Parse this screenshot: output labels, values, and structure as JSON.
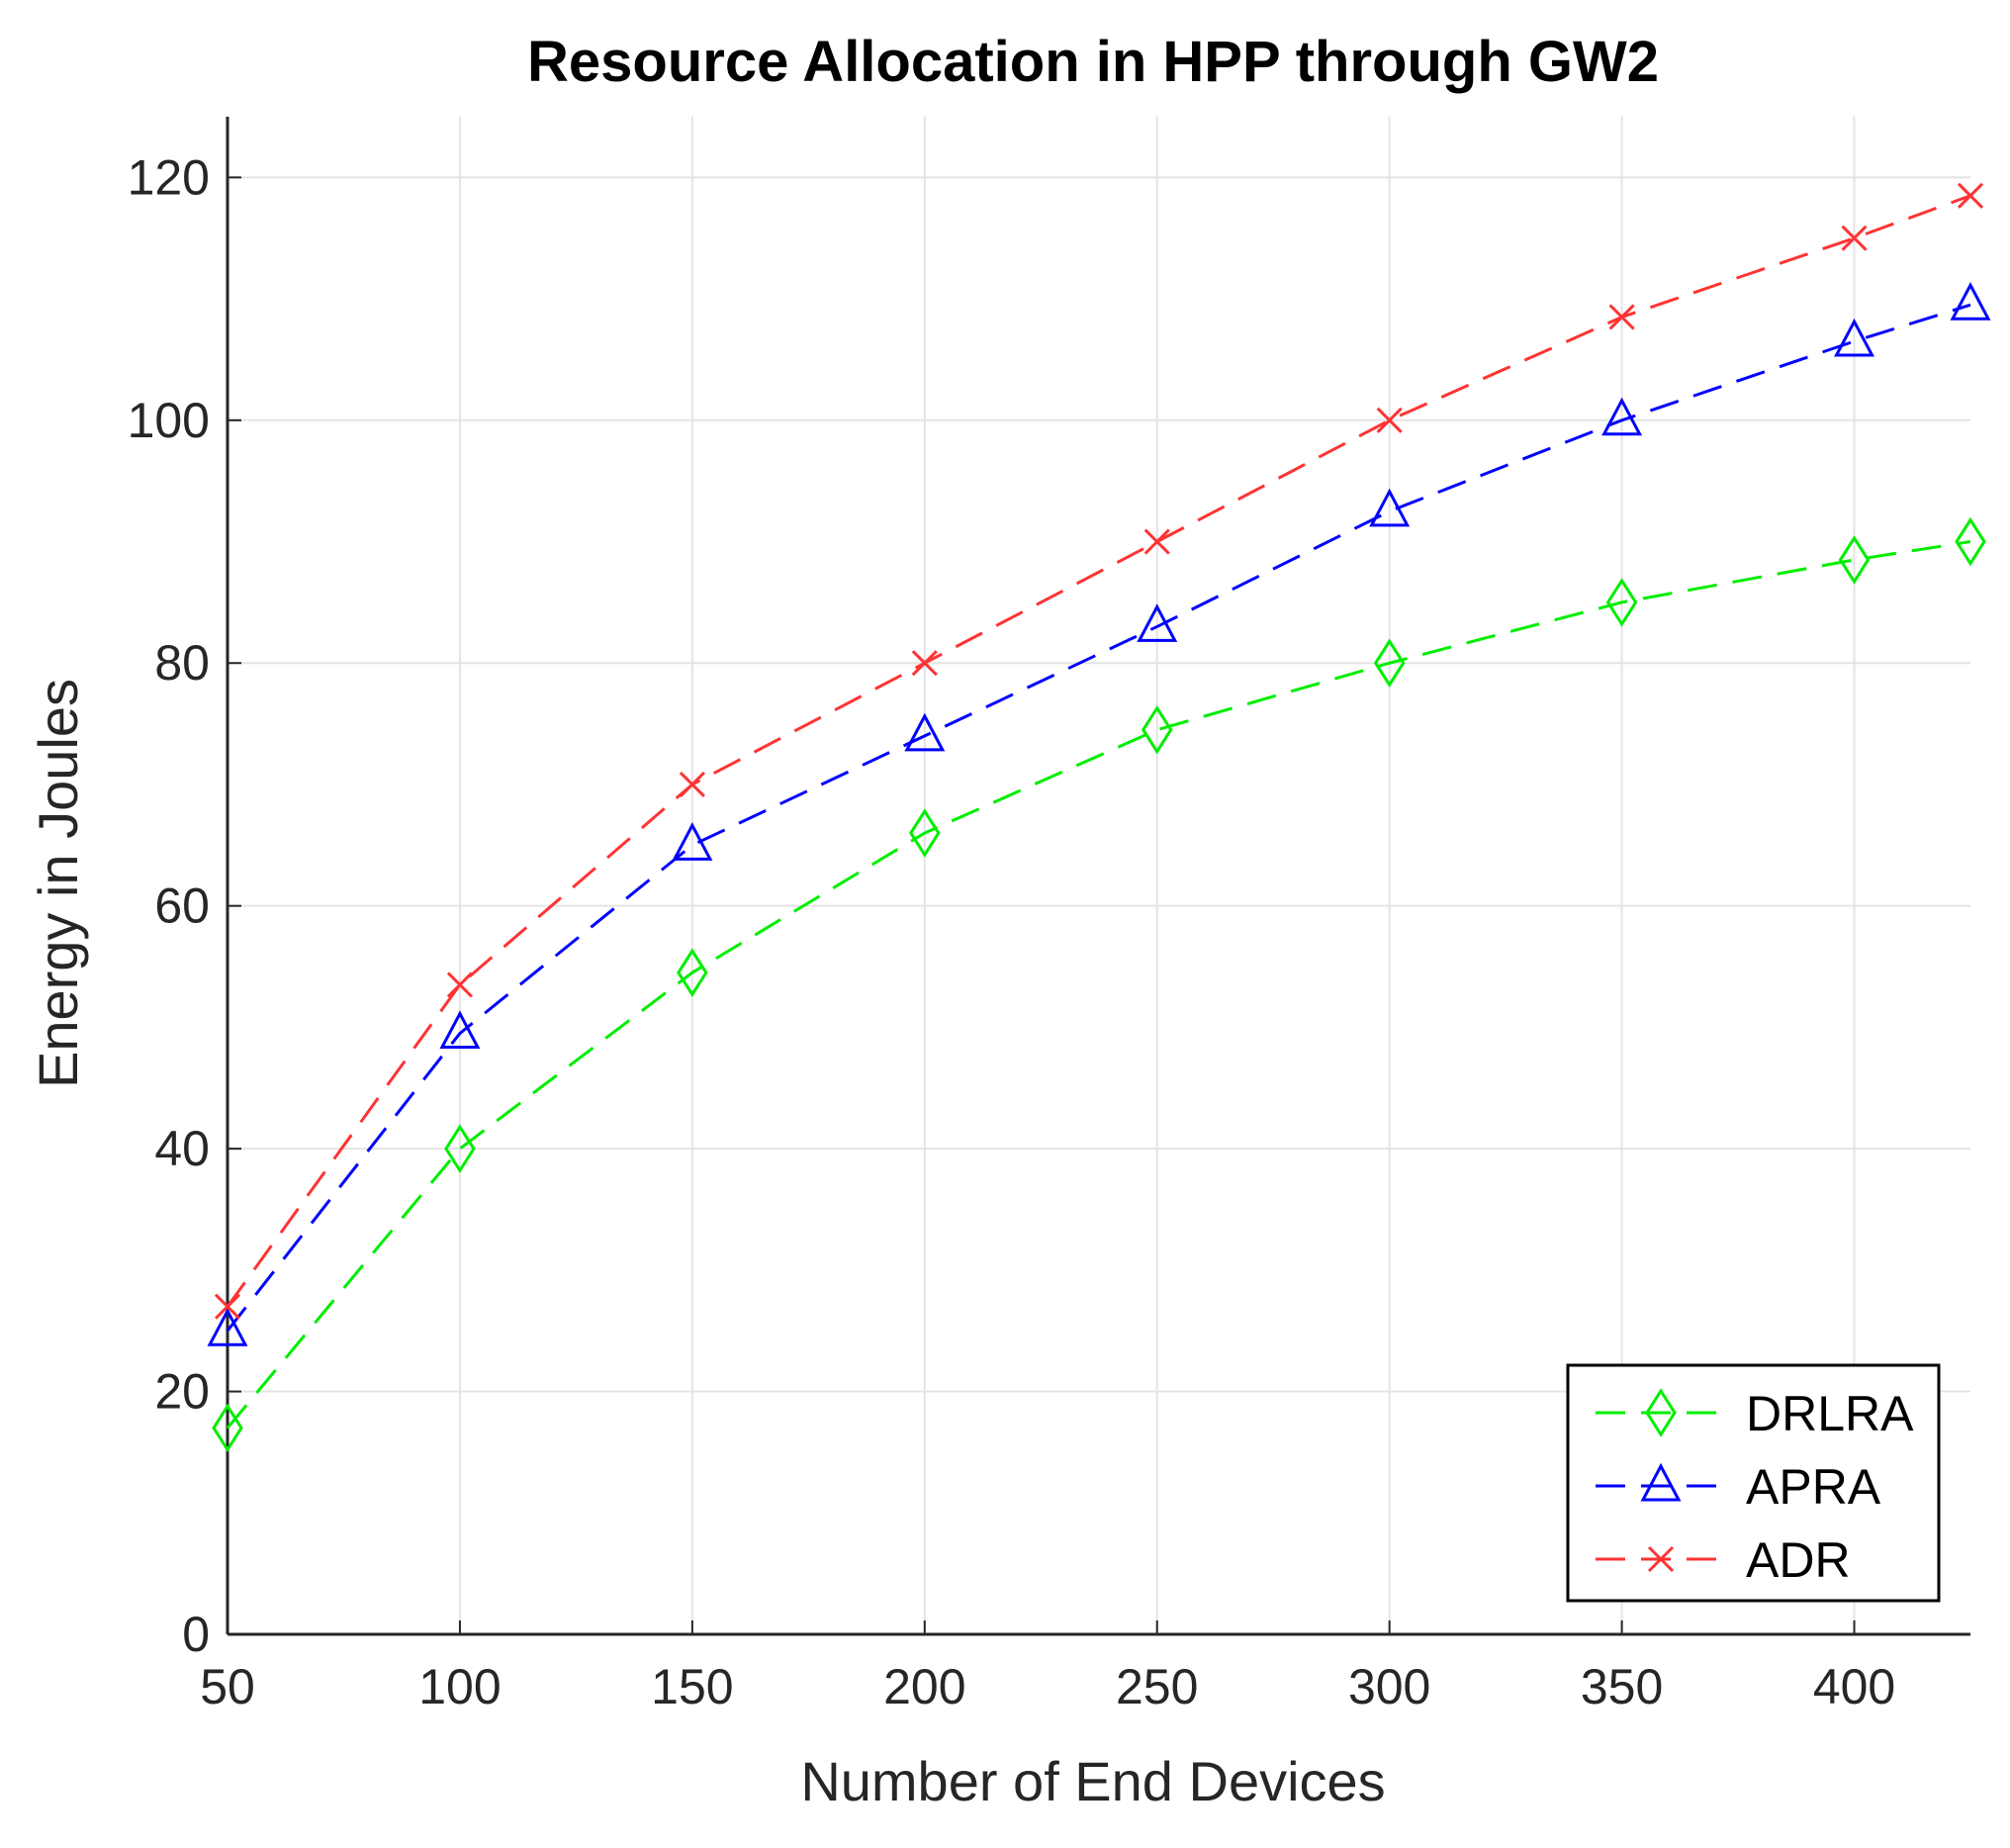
{
  "chart_data": {
    "type": "line",
    "title": "Resource Allocation in HPP through GW2",
    "xlabel": "Number of End Devices",
    "ylabel": "Energy in Joules",
    "x": [
      50,
      100,
      150,
      200,
      250,
      300,
      350,
      400,
      425
    ],
    "xlim": [
      50,
      425
    ],
    "ylim": [
      0,
      125
    ],
    "xticks": [
      50,
      100,
      150,
      200,
      250,
      300,
      350,
      400
    ],
    "yticks": [
      0,
      20,
      40,
      60,
      80,
      100,
      120
    ],
    "grid": true,
    "legend_position": "bottom-right",
    "series": [
      {
        "name": "DRLRA",
        "color": "#00ee00",
        "marker": "diamond",
        "values": [
          17,
          40,
          54.5,
          66,
          74.5,
          80,
          85,
          88.5,
          90
        ]
      },
      {
        "name": "APRA",
        "color": "#0000ff",
        "marker": "triangle",
        "values": [
          25,
          49.5,
          65,
          74,
          83,
          92.5,
          100,
          106.5,
          109.5
        ]
      },
      {
        "name": "ADR",
        "color": "#ff3333",
        "marker": "x",
        "values": [
          27,
          53.5,
          70,
          80,
          90,
          100,
          108.5,
          115,
          118.5
        ]
      }
    ]
  }
}
